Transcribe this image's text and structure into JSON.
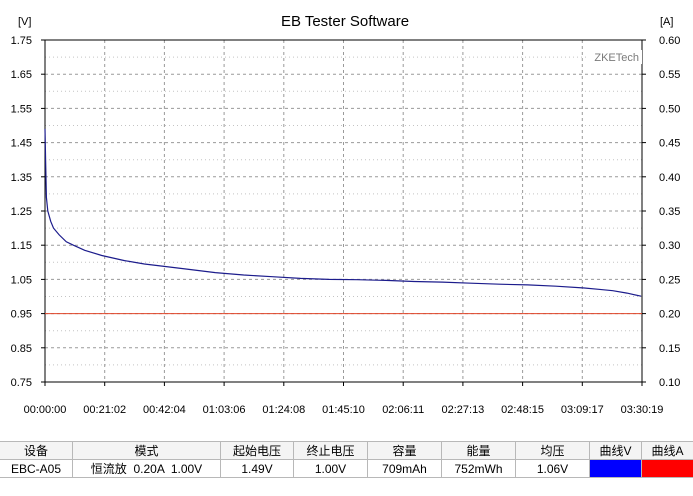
{
  "window": {
    "title": "EB Tester Software"
  },
  "watermark": "ZKETech",
  "chart_data": {
    "type": "line",
    "title": "EB Tester Software",
    "left_unit": "[V]",
    "right_unit": "[A]",
    "y_ticks": [
      "1.75",
      "1.65",
      "1.55",
      "1.45",
      "1.35",
      "1.25",
      "1.15",
      "1.05",
      "0.95",
      "0.85",
      "0.75"
    ],
    "y2_ticks": [
      "0.60",
      "0.55",
      "0.50",
      "0.45",
      "0.40",
      "0.35",
      "0.30",
      "0.25",
      "0.20",
      "0.15",
      "0.10"
    ],
    "x_ticks": [
      "00:00:00",
      "00:21:02",
      "00:42:04",
      "01:03:06",
      "01:24:08",
      "01:45:10",
      "02:06:11",
      "02:27:13",
      "02:48:15",
      "03:09:17",
      "03:30:19"
    ],
    "ylim": [
      0.75,
      1.75
    ],
    "y2lim": [
      0.1,
      0.6
    ],
    "xlim_minutes": [
      0,
      210.3
    ],
    "grid": true,
    "series": [
      {
        "axis": "left",
        "color": "#1c1c8c",
        "x": [
          0,
          0.2,
          0.5,
          1,
          2,
          3,
          5,
          7.5,
          10,
          14,
          20,
          28,
          35,
          42,
          50,
          60,
          70,
          80,
          90,
          100,
          110,
          120,
          130,
          140,
          150,
          160,
          170,
          180,
          190,
          195,
          200,
          205,
          210
        ],
        "y": [
          1.49,
          1.4,
          1.29,
          1.25,
          1.22,
          1.2,
          1.18,
          1.16,
          1.15,
          1.135,
          1.12,
          1.105,
          1.095,
          1.088,
          1.08,
          1.07,
          1.063,
          1.058,
          1.053,
          1.05,
          1.049,
          1.047,
          1.044,
          1.042,
          1.039,
          1.036,
          1.034,
          1.03,
          1.025,
          1.021,
          1.017,
          1.01,
          1.001
        ]
      },
      {
        "axis": "right",
        "color": "#e04428",
        "x": [
          0,
          210.3
        ],
        "y": [
          0.2,
          0.2
        ]
      }
    ]
  },
  "summary": {
    "headers": [
      "设备",
      "模式",
      "起始电压",
      "终止电压",
      "容量",
      "能量",
      "均压",
      "曲线V",
      "曲线A"
    ],
    "row": [
      "EBC-A05",
      "恒流放  0.20A  1.00V",
      "1.49V",
      "1.00V",
      "709mAh",
      "752mWh",
      "1.06V"
    ],
    "curve_colors": {
      "V": "#0000ff",
      "A": "#ff0000"
    }
  }
}
